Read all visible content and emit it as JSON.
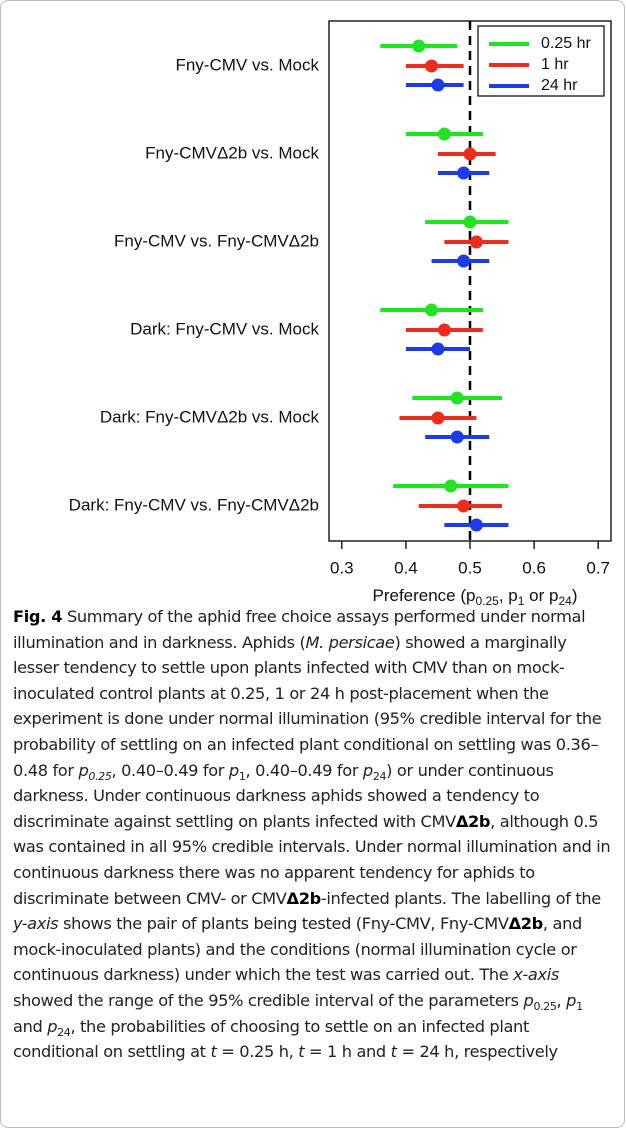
{
  "chart_data": {
    "type": "interval",
    "categories": [
      "Fny-CMV vs. Mock",
      "Fny-CMVΔ2b vs. Mock",
      "Fny-CMV vs. Fny-CMVΔ2b",
      "Dark: Fny-CMV vs. Mock",
      "Dark: Fny-CMVΔ2b vs. Mock",
      "Dark: Fny-CMV vs. Fny-CMVΔ2b"
    ],
    "series": [
      {
        "name": "0.25 hr",
        "color": "#22e322",
        "values": [
          0.42,
          0.46,
          0.5,
          0.44,
          0.48,
          0.47
        ],
        "lower": [
          0.36,
          0.4,
          0.43,
          0.36,
          0.41,
          0.38
        ],
        "upper": [
          0.48,
          0.52,
          0.56,
          0.52,
          0.55,
          0.56
        ]
      },
      {
        "name": "1 hr",
        "color": "#ee2c1c",
        "values": [
          0.44,
          0.5,
          0.51,
          0.46,
          0.45,
          0.49
        ],
        "lower": [
          0.4,
          0.45,
          0.46,
          0.4,
          0.39,
          0.42
        ],
        "upper": [
          0.49,
          0.54,
          0.56,
          0.52,
          0.51,
          0.55
        ]
      },
      {
        "name": "24 hr",
        "color": "#1c3ce8",
        "values": [
          0.45,
          0.49,
          0.49,
          0.45,
          0.48,
          0.51
        ],
        "lower": [
          0.4,
          0.45,
          0.44,
          0.4,
          0.43,
          0.46
        ],
        "upper": [
          0.49,
          0.53,
          0.53,
          0.5,
          0.53,
          0.56
        ]
      }
    ],
    "xlabel": [
      "Preference (p",
      "0.25",
      ", p",
      "1",
      " or p",
      "24",
      ")"
    ],
    "xlim": [
      0.28,
      0.72
    ],
    "xticks": [
      0.3,
      0.4,
      0.5,
      0.6,
      0.7
    ],
    "reference_line": 0.5,
    "legend": "top-right"
  },
  "caption": [
    "Fig. 4",
    " Summary of the aphid free choice assays performed under normal illumination and in darkness. Aphids (",
    "M. persicae",
    ") showed a marginally lesser tendency to settle upon plants infected with CMV than on mock-inoculated control plants at 0.25, 1 or 24 h post-placement when the experiment is done under normal illumination (95% credible interval for the probability of settling on an infected plant conditional on settling was 0.36–0.48 for ",
    "p",
    "0.25",
    ", 0.40–0.49 for ",
    "p",
    "1",
    ", 0.40–0.49 for ",
    "p",
    "24",
    ") or under continuous darkness. Under continuous darkness aphids showed a tendency to discriminate against settling on plants infected with CMV",
    "Δ2b",
    ", although 0.5 was contained in all 95% credible intervals. Under normal illumination and in continuous darkness there was no apparent tendency for aphids to discriminate between CMV- or CMV",
    "Δ2b",
    "-infected plants. The labelling of the ",
    "y-axis",
    " shows the pair of plants being tested (Fny-CMV, Fny-CMV",
    "Δ2b",
    ", and mock-inoculated plants) and the conditions (normal illumination cycle or continuous darkness) under which the test was carried out. The ",
    "x-axis",
    " showed the range of the 95% credible interval of the parameters ",
    "p",
    "0.25",
    ", ",
    "p",
    "1",
    " and ",
    "p",
    "24",
    ", the probabilities of choosing to settle on an infected plant conditional on settling at ",
    "t",
    " = 0.25 h, ",
    "t",
    " = 1 h and ",
    "t",
    " = 24 h, respectively"
  ]
}
